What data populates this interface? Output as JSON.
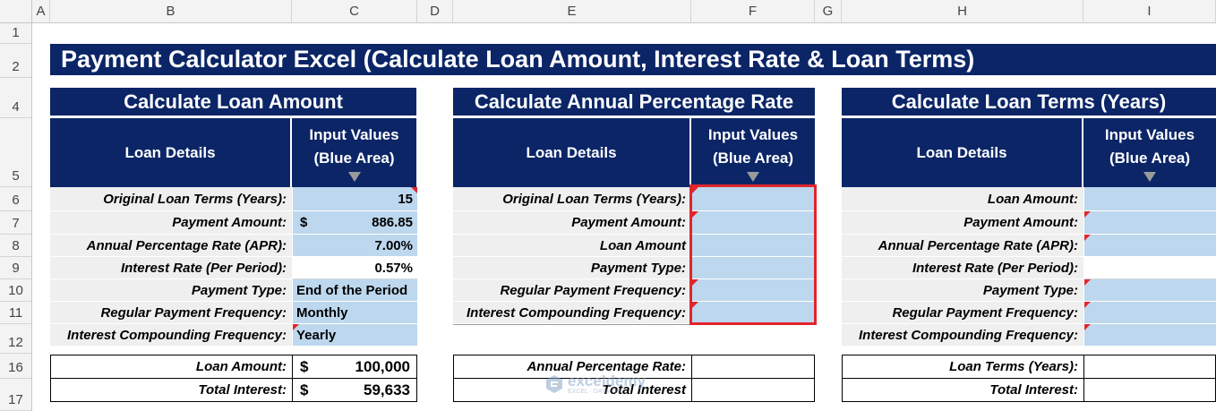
{
  "columns": [
    "A",
    "B",
    "C",
    "D",
    "E",
    "F",
    "G",
    "H",
    "I"
  ],
  "rows": [
    "1",
    "2",
    "4",
    "5",
    "6",
    "7",
    "8",
    "9",
    "10",
    "11",
    "12",
    "16",
    "17"
  ],
  "title": "Payment Calculator Excel (Calculate Loan Amount, Interest Rate & Loan Terms)",
  "section1": {
    "heading": "Calculate Loan Amount",
    "col1": "Loan Details",
    "col2_line1": "Input Values",
    "col2_line2": "(Blue Area)",
    "labels": [
      "Original Loan Terms (Years):",
      "Payment Amount:",
      "Annual Percentage Rate (APR):",
      "Interest Rate (Per Period):",
      "Payment Type:",
      "Regular Payment Frequency:",
      "Interest Compounding Frequency:"
    ],
    "values": [
      "15",
      "886.85",
      "7.00%",
      "0.57%",
      "End of the Period",
      "Monthly",
      "Yearly"
    ],
    "payment_currency": "$",
    "result_labels": [
      "Loan Amount:",
      "Total Interest:"
    ],
    "result_currency": "$",
    "result_values": [
      "100,000",
      "59,633"
    ]
  },
  "section2": {
    "heading": "Calculate Annual Percentage Rate",
    "col1": "Loan Details",
    "col2_line1": "Input Values",
    "col2_line2": "(Blue Area)",
    "labels": [
      "Original Loan Terms (Years):",
      "Payment Amount:",
      "Loan Amount",
      "Payment Type:",
      "Regular Payment Frequency:",
      "Interest Compounding Frequency:"
    ],
    "result_labels": [
      "Annual Percentage Rate:",
      "Total Interest"
    ]
  },
  "section3": {
    "heading": "Calculate Loan Terms (Years)",
    "col1": "Loan Details",
    "col2_line1": "Input Values",
    "col2_line2": "(Blue Area)",
    "labels": [
      "Loan Amount:",
      "Payment Amount:",
      "Annual Percentage Rate (APR):",
      "Interest Rate (Per Period):",
      "Payment Type:",
      "Regular Payment Frequency:",
      "Interest Compounding Frequency:"
    ],
    "result_labels": [
      "Loan Terms (Years):",
      "Total Interest:"
    ]
  },
  "watermark": {
    "name": "exceldemy",
    "tagline": "EXCEL · DATA · BI"
  },
  "colors": {
    "navy": "#0b2567",
    "input_blue": "#bdd7ee",
    "highlight": "#e0262b"
  }
}
